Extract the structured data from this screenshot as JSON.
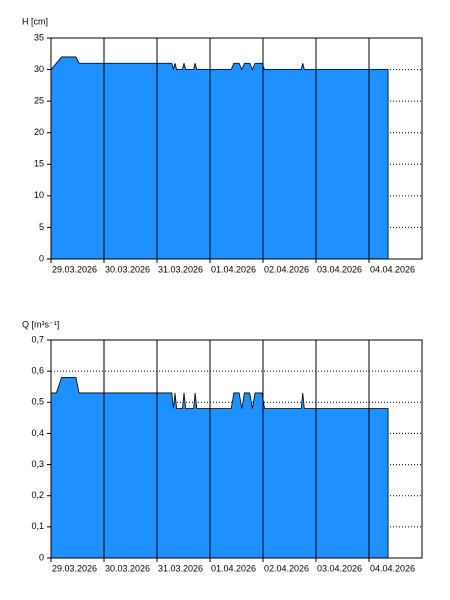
{
  "chart_data": [
    {
      "type": "area",
      "y_label": "H [cm]",
      "color": "#1e90ff",
      "grid": true,
      "x": [
        0,
        0.2,
        0.47,
        0.53,
        2.28,
        2.31,
        2.34,
        2.37,
        2.48,
        2.51,
        2.54,
        2.69,
        2.72,
        2.75,
        3.4,
        3.45,
        3.55,
        3.6,
        3.65,
        3.75,
        3.8,
        3.85,
        3.98,
        4.03,
        4.72,
        4.75,
        4.78,
        6.36
      ],
      "values": [
        30,
        32,
        32,
        31,
        31,
        30,
        31,
        30,
        30,
        31,
        30,
        30,
        31,
        30,
        30,
        31,
        31,
        30,
        31,
        31,
        30,
        31,
        31,
        30,
        30,
        31,
        30,
        30
      ],
      "xlim": [
        0,
        7
      ],
      "xticks": [
        {
          "value": 0,
          "label": "29.03.2026"
        },
        {
          "value": 1,
          "label": "30.03.2026"
        },
        {
          "value": 2,
          "label": "31.03.2026"
        },
        {
          "value": 3,
          "label": "01.04.2026"
        },
        {
          "value": 4,
          "label": "02.04.2026"
        },
        {
          "value": 5,
          "label": "03.04.2026"
        },
        {
          "value": 6,
          "label": "04.04.2026"
        }
      ],
      "ylim": [
        0,
        35
      ],
      "yticks": [
        0,
        5,
        10,
        15,
        20,
        25,
        30,
        35
      ]
    },
    {
      "type": "area",
      "y_label": "Q [m³s⁻¹]",
      "color": "#1e90ff",
      "grid": true,
      "x": [
        0,
        0.1,
        0.2,
        0.47,
        0.53,
        2.28,
        2.31,
        2.34,
        2.37,
        2.48,
        2.51,
        2.54,
        2.69,
        2.72,
        2.75,
        3.4,
        3.45,
        3.55,
        3.6,
        3.65,
        3.75,
        3.8,
        3.85,
        3.98,
        4.03,
        4.72,
        4.75,
        4.78,
        6.36
      ],
      "values": [
        0.53,
        0.53,
        0.58,
        0.58,
        0.53,
        0.53,
        0.48,
        0.53,
        0.48,
        0.48,
        0.53,
        0.48,
        0.48,
        0.53,
        0.48,
        0.48,
        0.53,
        0.53,
        0.48,
        0.53,
        0.53,
        0.48,
        0.53,
        0.53,
        0.48,
        0.48,
        0.53,
        0.48,
        0.48
      ],
      "xlim": [
        0,
        7
      ],
      "xticks": [
        {
          "value": 0,
          "label": "29.03.2026"
        },
        {
          "value": 1,
          "label": "30.03.2026"
        },
        {
          "value": 2,
          "label": "31.03.2026"
        },
        {
          "value": 3,
          "label": "01.04.2026"
        },
        {
          "value": 4,
          "label": "02.04.2026"
        },
        {
          "value": 5,
          "label": "03.04.2026"
        },
        {
          "value": 6,
          "label": "04.04.2026"
        }
      ],
      "ylim": [
        0,
        0.7
      ],
      "yticks": [
        0,
        {
          "value": 0.1,
          "label": "0,1"
        },
        {
          "value": 0.2,
          "label": "0,2"
        },
        {
          "value": 0.3,
          "label": "0,3"
        },
        {
          "value": 0.4,
          "label": "0,4"
        },
        {
          "value": 0.5,
          "label": "0,5"
        },
        {
          "value": 0.6,
          "label": "0,6"
        },
        {
          "value": 0.7,
          "label": "0,7"
        }
      ]
    }
  ]
}
